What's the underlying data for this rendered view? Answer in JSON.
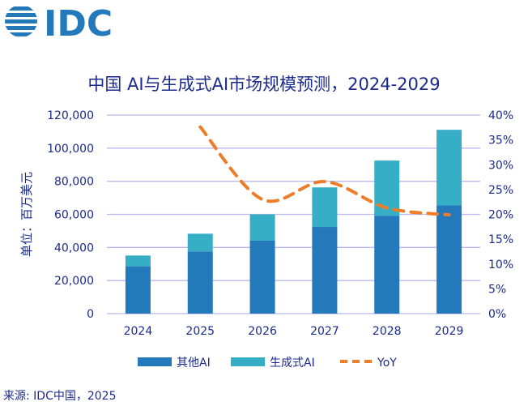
{
  "logo_text": "IDC",
  "chart_data": {
    "type": "bar",
    "stacked": true,
    "title": "中国 AI与生成式AI市场规模预测，2024-2029",
    "ylabel": "单位：百万美元",
    "categories": [
      "2024",
      "2025",
      "2026",
      "2027",
      "2028",
      "2029"
    ],
    "ylim": [
      0,
      120000
    ],
    "yticks": [
      "0",
      "20,000",
      "40,000",
      "60,000",
      "80,000",
      "100,000",
      "120,000"
    ],
    "y2lim": [
      0,
      40
    ],
    "y2ticks": [
      "0%",
      "5%",
      "10%",
      "15%",
      "20%",
      "25%",
      "30%",
      "35%",
      "40%"
    ],
    "grid": true,
    "legend_position": "bottom",
    "series": [
      {
        "name": "其他AI",
        "type": "bar",
        "color": "#2479ba",
        "values": [
          28600,
          37600,
          44100,
          52400,
          59200,
          65400
        ]
      },
      {
        "name": "生成式AI",
        "type": "bar",
        "color": "#36afc6",
        "values": [
          6500,
          10700,
          15900,
          23900,
          33300,
          45700
        ]
      },
      {
        "name": "YoY",
        "type": "line",
        "axis": "right",
        "style": "dashed",
        "color": "#ee7d2a",
        "values": [
          null,
          37.6,
          23.0,
          26.6,
          21.3,
          19.9
        ]
      }
    ]
  },
  "source": "来源: IDC中国，2025"
}
